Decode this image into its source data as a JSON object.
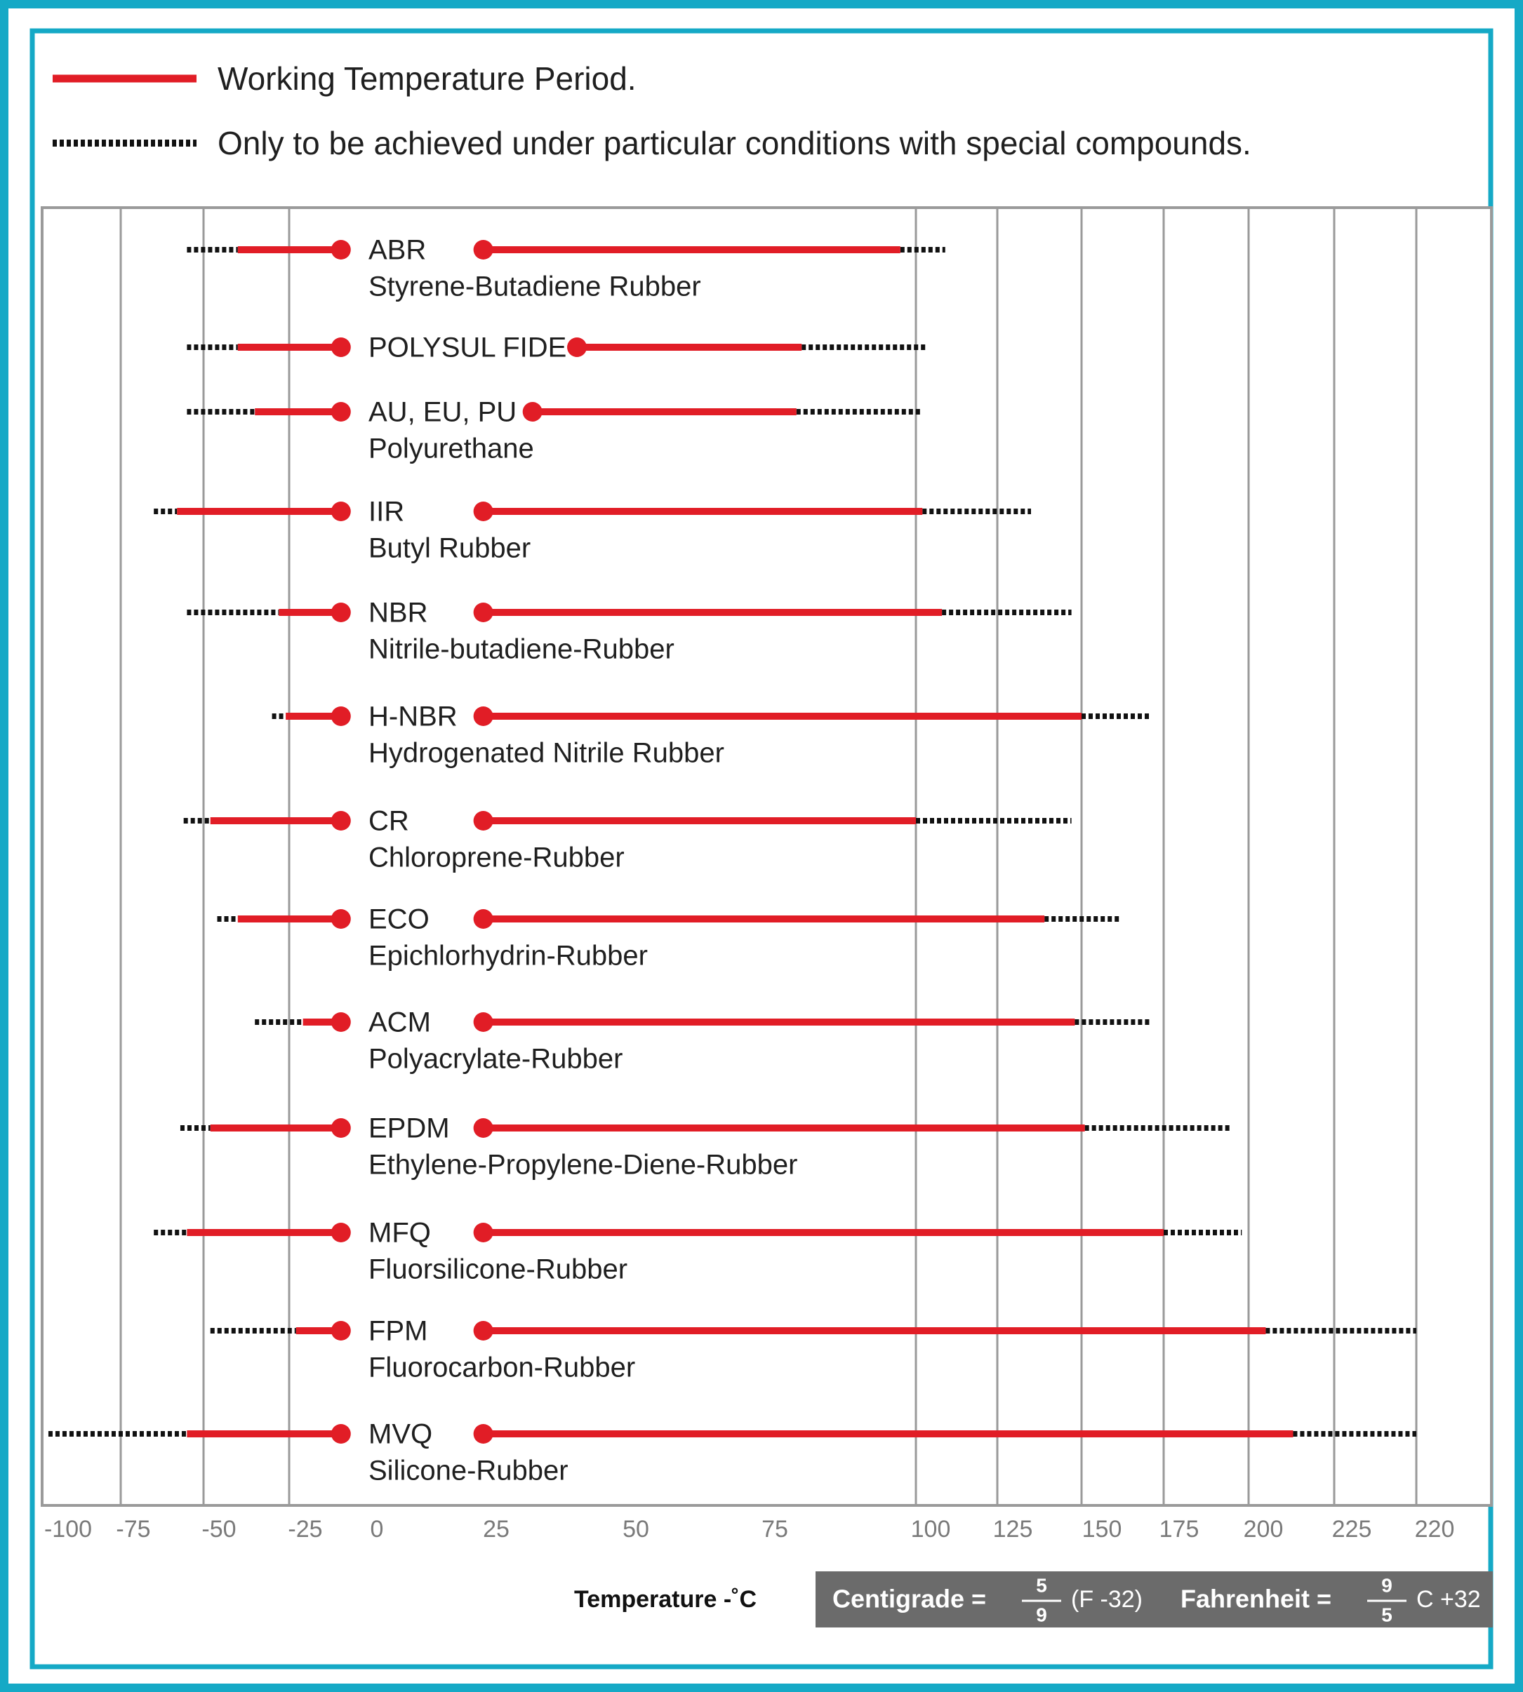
{
  "colors": {
    "frame": "#15a9c6",
    "working": "#e11d26",
    "special": "#111111",
    "grid": "#9a9a9a",
    "tick": "#7a7a7a",
    "formula_bg": "#6b6b6b"
  },
  "legend": {
    "working_label": "Working Temperature Period.",
    "special_label": "Only to be achieved under particular conditions with special compounds."
  },
  "chart_data": {
    "type": "range-bar",
    "xlabel": "Temperature -˚C",
    "tick_labels": [
      "-100",
      "-75",
      "-50",
      "-25",
      "0",
      "25",
      "50",
      "75",
      "100",
      "125",
      "150",
      "175",
      "200",
      "225",
      "220"
    ],
    "grid": true,
    "legend_position": "top",
    "series": [
      {
        "code": "ABR",
        "name": "Styrene-Butadiene Rubber",
        "special_low": -55,
        "working_low": -40,
        "marker_low": -10,
        "marker_high": 20,
        "working_high": 97,
        "special_high": 109
      },
      {
        "code": "POLYSUL FIDE",
        "name": "",
        "special_low": -55,
        "working_low": -40,
        "marker_low": -10,
        "marker_high": 37,
        "working_high": 78,
        "special_high": 103
      },
      {
        "code": "AU, EU, PU",
        "name": "Polyurethane",
        "special_low": -55,
        "working_low": -35,
        "marker_low": -10,
        "marker_high": 29,
        "working_high": 77,
        "special_high": 102
      },
      {
        "code": "IIR",
        "name": "Butyl Rubber",
        "special_low": -65,
        "working_low": -58,
        "marker_low": -10,
        "marker_high": 20,
        "working_high": 102,
        "special_high": 135
      },
      {
        "code": "NBR",
        "name": "Nitrile-butadiene-Rubber",
        "special_low": -55,
        "working_low": -28,
        "marker_low": -10,
        "marker_high": 20,
        "working_high": 108,
        "special_high": 147
      },
      {
        "code": "H-NBR",
        "name": "Hydrogenated Nitrile Rubber",
        "special_low": -30,
        "working_low": -26,
        "marker_low": -10,
        "marker_high": 20,
        "working_high": 150,
        "special_high": 171
      },
      {
        "code": "CR",
        "name": "Chloroprene-Rubber",
        "special_low": -56,
        "working_low": -48,
        "marker_low": -10,
        "marker_high": 20,
        "working_high": 100,
        "special_high": 147
      },
      {
        "code": "ECO",
        "name": "Epichlorhydrin-Rubber",
        "special_low": -46,
        "working_low": -40,
        "marker_low": -10,
        "marker_high": 20,
        "working_high": 139,
        "special_high": 162
      },
      {
        "code": "ACM",
        "name": "Polyacrylate-Rubber",
        "special_low": -35,
        "working_low": -21,
        "marker_low": -10,
        "marker_high": 20,
        "working_high": 148,
        "special_high": 171
      },
      {
        "code": "EPDM",
        "name": "Ethylene-Propylene-Diene-Rubber",
        "special_low": -57,
        "working_low": -48,
        "marker_low": -10,
        "marker_high": 20,
        "working_high": 151,
        "special_high": 195
      },
      {
        "code": "MFQ",
        "name": "Fluorsilicone-Rubber",
        "special_low": -65,
        "working_low": -55,
        "marker_low": -10,
        "marker_high": 20,
        "working_high": 175,
        "special_high": 198
      },
      {
        "code": "FPM",
        "name": "Fluorocarbon-Rubber",
        "special_low": -48,
        "working_low": -23,
        "marker_low": -10,
        "marker_high": 20,
        "working_high": 205,
        "special_high": 250
      },
      {
        "code": "MVQ",
        "name": "Silicone-Rubber",
        "special_low": -98,
        "working_low": -55,
        "marker_low": -10,
        "marker_high": 20,
        "working_high": 213,
        "special_high": 250
      }
    ]
  },
  "formula": {
    "centigrade_label": "Centigrade =",
    "centigrade_num": "5",
    "centigrade_den": "9",
    "centigrade_tail": "(F -32)",
    "fahrenheit_label": "Fahrenheit =",
    "fahrenheit_num": "9",
    "fahrenheit_den": "5",
    "fahrenheit_tail": "C +32"
  }
}
